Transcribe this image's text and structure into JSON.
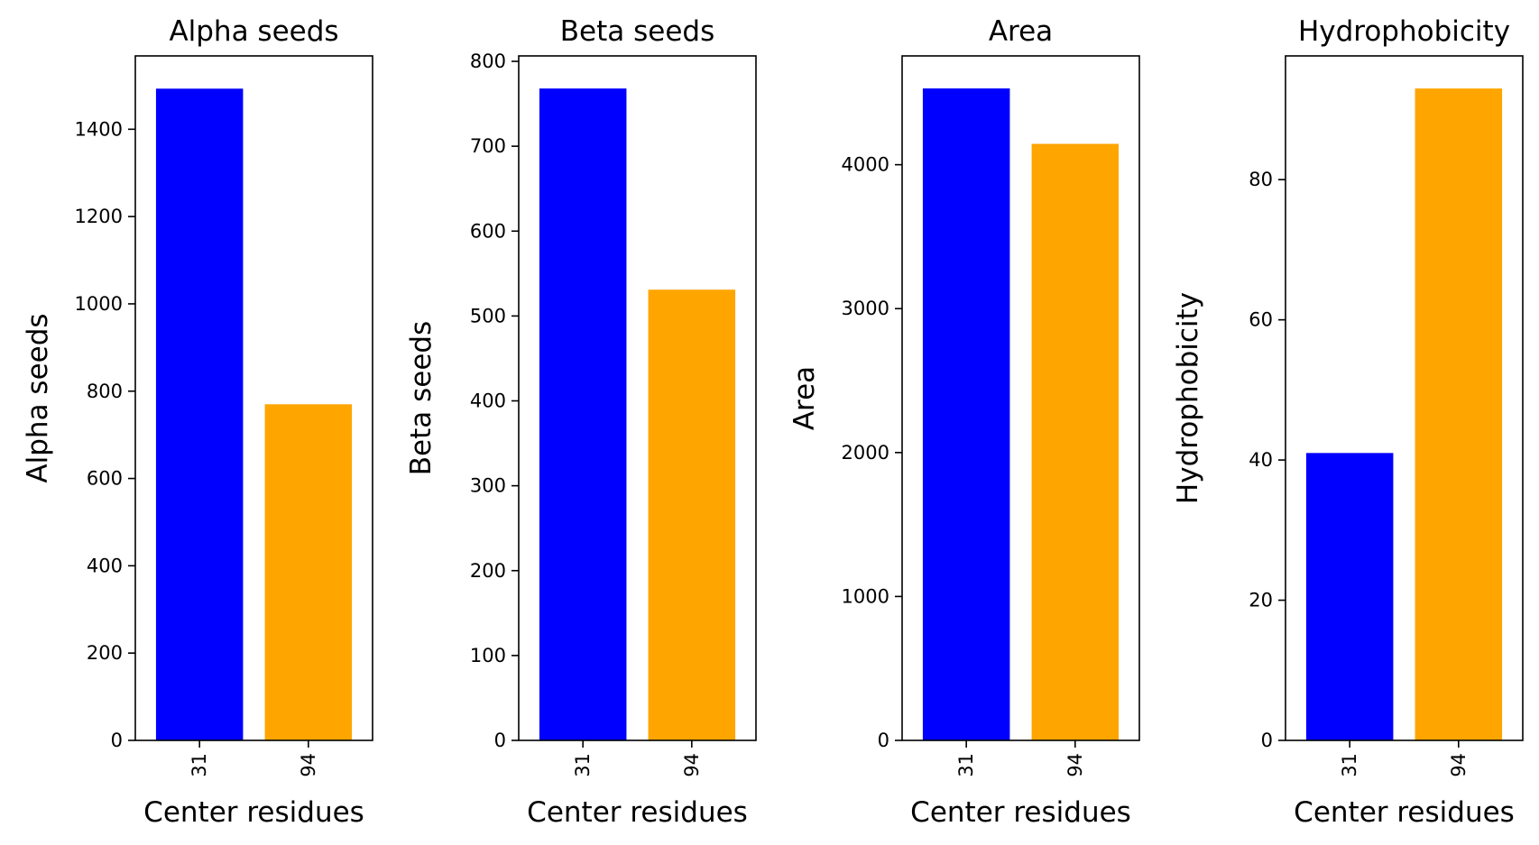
{
  "chart_data": [
    {
      "type": "bar",
      "title": "Alpha seeds",
      "xlabel": "Center residues",
      "ylabel": "Alpha seeds",
      "categories": [
        "31",
        "94"
      ],
      "values": [
        1493,
        770
      ],
      "colors": [
        "#0000ff",
        "#ffa500"
      ],
      "ylim": [
        0,
        1568
      ],
      "yticks": [
        0,
        200,
        400,
        600,
        800,
        1000,
        1200,
        1400
      ],
      "grid": false
    },
    {
      "type": "bar",
      "title": "Beta seeds",
      "xlabel": "Center residues",
      "ylabel": "Beta seeds",
      "categories": [
        "31",
        "94"
      ],
      "values": [
        768,
        531
      ],
      "colors": [
        "#0000ff",
        "#ffa500"
      ],
      "ylim": [
        0,
        806.4
      ],
      "yticks": [
        0,
        100,
        200,
        300,
        400,
        500,
        600,
        700,
        800
      ],
      "grid": false
    },
    {
      "type": "bar",
      "title": "Area",
      "xlabel": "Center residues",
      "ylabel": "Area",
      "categories": [
        "31",
        "94"
      ],
      "values": [
        4530,
        4145
      ],
      "colors": [
        "#0000ff",
        "#ffa500"
      ],
      "ylim": [
        0,
        4756
      ],
      "yticks": [
        0,
        1000,
        2000,
        3000,
        4000
      ],
      "grid": false
    },
    {
      "type": "bar",
      "title": "Hydrophobicity",
      "xlabel": "Center residues",
      "ylabel": "Hydrophobicity",
      "categories": [
        "31",
        "94"
      ],
      "values": [
        41,
        93
      ],
      "colors": [
        "#0000ff",
        "#ffa500"
      ],
      "ylim": [
        0,
        97.65
      ],
      "yticks": [
        0,
        20,
        40,
        60,
        80
      ],
      "grid": false
    }
  ]
}
